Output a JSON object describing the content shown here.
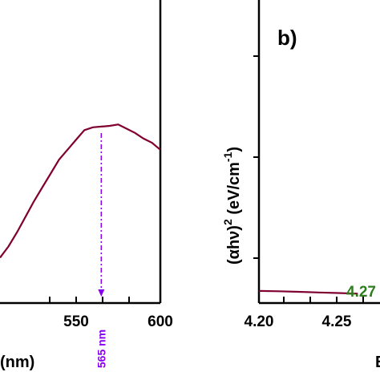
{
  "colors": {
    "curve": "#800030",
    "annotation": "#8800ee",
    "bandgap_label": "#2e7d1e",
    "axis": "#000000"
  },
  "chart_data": [
    {
      "type": "line",
      "panel_label": "",
      "xlabel": "(nm)",
      "ylabel": "",
      "xlim": [
        505,
        600
      ],
      "ylim": [
        0,
        1
      ],
      "x_ticks": [
        "550",
        "600"
      ],
      "series": [
        {
          "name": "",
          "x": [
            505,
            510,
            515,
            520,
            525,
            530,
            535,
            540,
            545,
            550,
            555,
            560,
            565,
            570,
            575,
            580,
            585,
            590,
            595,
            600
          ],
          "y": [
            0.02,
            0.1,
            0.2,
            0.31,
            0.42,
            0.52,
            0.62,
            0.72,
            0.79,
            0.86,
            0.93,
            0.95,
            0.955,
            0.96,
            0.97,
            0.94,
            0.91,
            0.87,
            0.84,
            0.79
          ]
        }
      ],
      "annotations": [
        {
          "text": "565 nm",
          "x": 565
        }
      ]
    },
    {
      "type": "line",
      "panel_label": "b)",
      "xlabel": "E",
      "ylabel_parts": {
        "base": "(αhν)",
        "exp1": "2",
        "units": " (eV/cm",
        "exp2": "-1",
        "close": ")"
      },
      "xlim": [
        4.2,
        4.32
      ],
      "ylim": [
        0,
        1
      ],
      "x_ticks": [
        "4.20",
        "4.25"
      ],
      "series": [
        {
          "name": "",
          "x": [
            4.2,
            4.22,
            4.24,
            4.26,
            4.28,
            4.3
          ],
          "y": [
            0.04,
            0.039,
            0.037,
            0.035,
            0.033,
            0.031
          ]
        }
      ],
      "annotations": [
        {
          "text": "4.27"
        }
      ]
    }
  ]
}
